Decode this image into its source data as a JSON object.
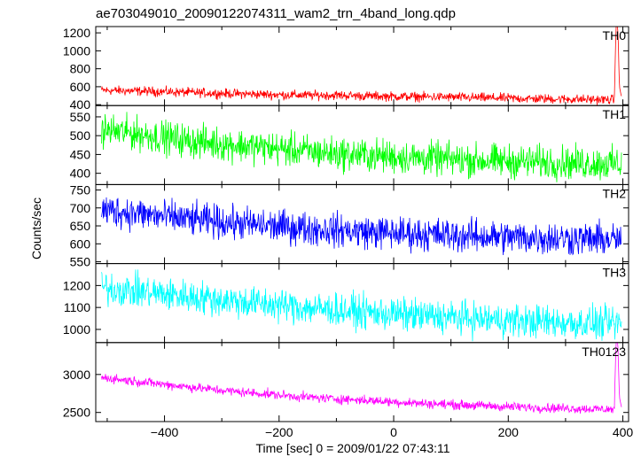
{
  "chart_data": {
    "type": "line",
    "title": "ae703049010_20090122074311_wam2_trn_4band_long.qdp",
    "xlabel": "Time [sec] 0 = 2009/01/22 07:43:11",
    "ylabel": "Counts/sec",
    "xlim": [
      -520,
      410
    ],
    "xticks": [
      -400,
      -200,
      0,
      200,
      400
    ],
    "grid": false,
    "panels": [
      {
        "name": "TH0",
        "color": "#ff0000",
        "ylim": [
          390,
          1270
        ],
        "yticks": [
          400,
          600,
          800,
          1000,
          1200
        ],
        "x": [
          -510,
          -450,
          -400,
          -350,
          -300,
          -250,
          -200,
          -150,
          -100,
          -50,
          0,
          50,
          100,
          150,
          200,
          250,
          300,
          350,
          385,
          388,
          391,
          394,
          398
        ],
        "values": [
          560,
          552,
          545,
          535,
          525,
          518,
          510,
          505,
          505,
          497,
          492,
          488,
          484,
          478,
          472,
          466,
          462,
          458,
          455,
          1270,
          1270,
          600,
          470
        ]
      },
      {
        "name": "TH1",
        "color": "#00ff00",
        "ylim": [
          370,
          580
        ],
        "yticks": [
          400,
          450,
          500,
          550
        ],
        "x": [
          -510,
          -450,
          -400,
          -350,
          -300,
          -250,
          -200,
          -150,
          -100,
          -50,
          0,
          50,
          100,
          150,
          200,
          250,
          300,
          350,
          398
        ],
        "values": [
          515,
          505,
          495,
          485,
          478,
          472,
          465,
          458,
          452,
          448,
          444,
          440,
          437,
          434,
          432,
          430,
          428,
          426,
          425
        ]
      },
      {
        "name": "TH2",
        "color": "#0000ff",
        "ylim": [
          545,
          765
        ],
        "yticks": [
          550,
          600,
          650,
          700,
          750
        ],
        "x": [
          -510,
          -450,
          -400,
          -350,
          -300,
          -250,
          -200,
          -150,
          -100,
          -50,
          0,
          50,
          100,
          150,
          200,
          250,
          300,
          350,
          398
        ],
        "values": [
          695,
          685,
          675,
          667,
          660,
          654,
          648,
          643,
          638,
          634,
          630,
          627,
          624,
          621,
          619,
          617,
          615,
          613,
          612
        ]
      },
      {
        "name": "TH3",
        "color": "#00ffff",
        "ylim": [
          940,
          1300
        ],
        "yticks": [
          1000,
          1100,
          1200
        ],
        "x": [
          -510,
          -450,
          -400,
          -350,
          -300,
          -250,
          -200,
          -150,
          -100,
          -50,
          0,
          50,
          100,
          150,
          200,
          250,
          300,
          350,
          398
        ],
        "values": [
          1190,
          1175,
          1160,
          1148,
          1135,
          1122,
          1110,
          1098,
          1088,
          1078,
          1070,
          1062,
          1055,
          1048,
          1042,
          1036,
          1031,
          1027,
          1024
        ]
      },
      {
        "name": "TH0123",
        "color": "#ff00ff",
        "ylim": [
          2380,
          3420
        ],
        "yticks": [
          2500,
          3000
        ],
        "x": [
          -510,
          -450,
          -400,
          -350,
          -300,
          -250,
          -200,
          -150,
          -100,
          -50,
          0,
          50,
          100,
          150,
          200,
          250,
          300,
          350,
          385,
          388,
          391,
          394,
          398
        ],
        "values": [
          2960,
          2910,
          2870,
          2830,
          2790,
          2760,
          2730,
          2700,
          2680,
          2660,
          2640,
          2620,
          2605,
          2590,
          2575,
          2565,
          2555,
          2545,
          2540,
          3420,
          3420,
          2700,
          2550
        ]
      }
    ]
  }
}
